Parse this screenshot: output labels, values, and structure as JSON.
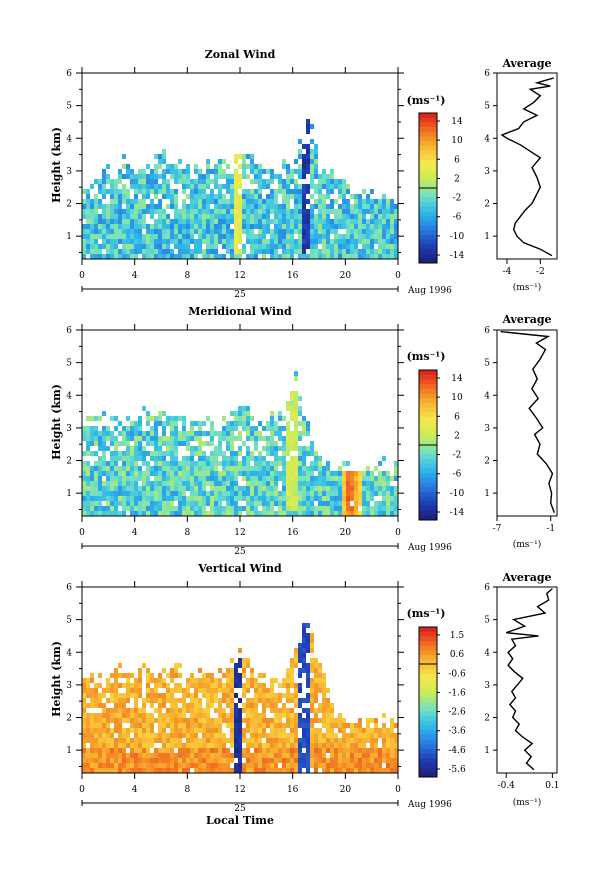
{
  "chart_data": [
    {
      "type": "heatmap",
      "title": "Zonal Wind",
      "ylabel": "Height (km)",
      "xlabel": "",
      "x_ticks": [
        "0",
        "4",
        "8",
        "12",
        "16",
        "20",
        "0"
      ],
      "x_range": [
        0,
        24
      ],
      "y_ticks": [
        "1",
        "2",
        "3",
        "4",
        "5",
        "6"
      ],
      "y_range": [
        0.3,
        6
      ],
      "date_label": "25",
      "date_suffix": "Aug 1996",
      "colorbar_unit": "(ms⁻¹)",
      "colorbar_labels": [
        "14",
        "10",
        "6",
        "2",
        "-2",
        "-6",
        "-10",
        "-14"
      ],
      "colorbar_range": [
        -16,
        16
      ],
      "data_extent": [
        {
          "t": 0,
          "top": 2.4
        },
        {
          "t": 1,
          "top": 3.0
        },
        {
          "t": 2,
          "top": 3.0
        },
        {
          "t": 3,
          "top": 3.3
        },
        {
          "t": 4,
          "top": 3.1
        },
        {
          "t": 5,
          "top": 3.1
        },
        {
          "t": 6,
          "top": 3.5
        },
        {
          "t": 7,
          "top": 3.2
        },
        {
          "t": 8,
          "top": 3.3
        },
        {
          "t": 9,
          "top": 3.2
        },
        {
          "t": 10,
          "top": 3.4
        },
        {
          "t": 11,
          "top": 3.4
        },
        {
          "t": 12,
          "top": 3.8
        },
        {
          "t": 13,
          "top": 3.2
        },
        {
          "t": 14,
          "top": 3.1
        },
        {
          "t": 15,
          "top": 3.2
        },
        {
          "t": 16,
          "top": 3.3
        },
        {
          "t": 17,
          "top": 4.8
        },
        {
          "t": 18,
          "top": 3.3
        },
        {
          "t": 19,
          "top": 3.1
        },
        {
          "t": 20,
          "top": 2.7
        },
        {
          "t": 21,
          "top": 2.5
        },
        {
          "t": 22,
          "top": 2.4
        },
        {
          "t": 23,
          "top": 2.2
        },
        {
          "t": 24,
          "top": 2.0
        }
      ],
      "features": [
        {
          "name": "strong easterly jet",
          "t": 16.8,
          "h_bottom": 0.5,
          "h_top": 4.8,
          "value": -13
        },
        {
          "name": "westerly spike",
          "t": 11.8,
          "h_bottom": 0.5,
          "h_top": 3.9,
          "value": 4
        }
      ],
      "profile": {
        "title": "Average",
        "x_ticks": [
          "-4",
          "-2"
        ],
        "x_range": [
          -4.6,
          -1.0
        ],
        "xlabel": "(ms⁻¹)",
        "y_ticks": [
          "1",
          "2",
          "3",
          "4",
          "5",
          "6"
        ],
        "points": [
          {
            "h": 0.4,
            "v": -1.3
          },
          {
            "h": 0.6,
            "v": -2.0
          },
          {
            "h": 0.8,
            "v": -3.0
          },
          {
            "h": 1.0,
            "v": -3.4
          },
          {
            "h": 1.2,
            "v": -3.6
          },
          {
            "h": 1.4,
            "v": -3.5
          },
          {
            "h": 1.6,
            "v": -3.2
          },
          {
            "h": 1.8,
            "v": -2.9
          },
          {
            "h": 2.0,
            "v": -2.5
          },
          {
            "h": 2.2,
            "v": -2.3
          },
          {
            "h": 2.5,
            "v": -2.0
          },
          {
            "h": 2.8,
            "v": -2.2
          },
          {
            "h": 3.1,
            "v": -2.5
          },
          {
            "h": 3.4,
            "v": -2.0
          },
          {
            "h": 3.6,
            "v": -2.6
          },
          {
            "h": 3.8,
            "v": -3.2
          },
          {
            "h": 4.0,
            "v": -4.0
          },
          {
            "h": 4.1,
            "v": -4.3
          },
          {
            "h": 4.3,
            "v": -3.3
          },
          {
            "h": 4.5,
            "v": -3.0
          },
          {
            "h": 4.7,
            "v": -2.2
          },
          {
            "h": 4.9,
            "v": -3.0
          },
          {
            "h": 5.1,
            "v": -2.4
          },
          {
            "h": 5.3,
            "v": -2.0
          },
          {
            "h": 5.5,
            "v": -2.6
          },
          {
            "h": 5.6,
            "v": -1.4
          },
          {
            "h": 5.7,
            "v": -2.2
          },
          {
            "h": 5.85,
            "v": -1.2
          }
        ]
      }
    },
    {
      "type": "heatmap",
      "title": "Meridional Wind",
      "ylabel": "Height (km)",
      "xlabel": "",
      "x_ticks": [
        "0",
        "4",
        "8",
        "12",
        "16",
        "20",
        "0"
      ],
      "x_range": [
        0,
        24
      ],
      "y_ticks": [
        "1",
        "2",
        "3",
        "4",
        "5",
        "6"
      ],
      "y_range": [
        0.3,
        6
      ],
      "date_label": "25",
      "date_suffix": "Aug 1996",
      "colorbar_unit": "(ms⁻¹)",
      "colorbar_labels": [
        "14",
        "10",
        "6",
        "2",
        "-2",
        "-6",
        "-10",
        "-14"
      ],
      "colorbar_range": [
        -16,
        16
      ],
      "data_extent": [
        {
          "t": 0,
          "top": 3.3
        },
        {
          "t": 1,
          "top": 3.4
        },
        {
          "t": 2,
          "top": 3.3
        },
        {
          "t": 3,
          "top": 3.4
        },
        {
          "t": 4,
          "top": 3.5
        },
        {
          "t": 5,
          "top": 3.6
        },
        {
          "t": 6,
          "top": 3.4
        },
        {
          "t": 7,
          "top": 3.5
        },
        {
          "t": 8,
          "top": 3.3
        },
        {
          "t": 9,
          "top": 3.4
        },
        {
          "t": 10,
          "top": 3.2
        },
        {
          "t": 11,
          "top": 3.3
        },
        {
          "t": 12,
          "top": 3.9
        },
        {
          "t": 13,
          "top": 3.1
        },
        {
          "t": 14,
          "top": 3.3
        },
        {
          "t": 15,
          "top": 3.4
        },
        {
          "t": 16,
          "top": 4.7
        },
        {
          "t": 17,
          "top": 3.2
        },
        {
          "t": 18,
          "top": 2.0
        },
        {
          "t": 19,
          "top": 1.8
        },
        {
          "t": 20,
          "top": 1.9
        },
        {
          "t": 21,
          "top": 1.7
        },
        {
          "t": 22,
          "top": 2.0
        },
        {
          "t": 23,
          "top": 1.9
        },
        {
          "t": 24,
          "top": 1.8
        }
      ],
      "features": [
        {
          "name": "southerly maximum",
          "t": 20.3,
          "h_bottom": 0.5,
          "h_top": 1.9,
          "value": 12
        },
        {
          "name": "positive band",
          "t": 15.8,
          "h_bottom": 0.5,
          "h_top": 4.6,
          "value": 2
        }
      ],
      "profile": {
        "title": "Average",
        "x_ticks": [
          "-7",
          "-1"
        ],
        "x_range": [
          -7,
          -0.3
        ],
        "xlabel": "(ms⁻¹)",
        "y_ticks": [
          "1",
          "2",
          "3",
          "4",
          "5",
          "6"
        ],
        "points": [
          {
            "h": 0.4,
            "v": -0.6
          },
          {
            "h": 0.7,
            "v": -1.0
          },
          {
            "h": 1.0,
            "v": -0.9
          },
          {
            "h": 1.3,
            "v": -1.2
          },
          {
            "h": 1.6,
            "v": -0.8
          },
          {
            "h": 1.9,
            "v": -1.5
          },
          {
            "h": 2.2,
            "v": -2.5
          },
          {
            "h": 2.5,
            "v": -2.2
          },
          {
            "h": 2.8,
            "v": -2.8
          },
          {
            "h": 3.0,
            "v": -1.9
          },
          {
            "h": 3.3,
            "v": -2.6
          },
          {
            "h": 3.6,
            "v": -3.4
          },
          {
            "h": 3.9,
            "v": -2.4
          },
          {
            "h": 4.2,
            "v": -3.1
          },
          {
            "h": 4.5,
            "v": -2.5
          },
          {
            "h": 4.8,
            "v": -3.0
          },
          {
            "h": 5.1,
            "v": -2.2
          },
          {
            "h": 5.4,
            "v": -1.6
          },
          {
            "h": 5.6,
            "v": -2.6
          },
          {
            "h": 5.8,
            "v": -1.3
          },
          {
            "h": 5.95,
            "v": -6.6
          }
        ]
      }
    },
    {
      "type": "heatmap",
      "title": "Vertical Wind",
      "ylabel": "Height (km)",
      "xlabel": "Local Time",
      "x_ticks": [
        "0",
        "4",
        "8",
        "12",
        "16",
        "20",
        "0"
      ],
      "x_range": [
        0,
        24
      ],
      "y_ticks": [
        "1",
        "2",
        "3",
        "4",
        "5",
        "6"
      ],
      "y_range": [
        0.3,
        6
      ],
      "date_label": "25",
      "date_suffix": "Aug 1996",
      "colorbar_unit": "(ms⁻¹)",
      "colorbar_labels": [
        "1.5",
        "0.6",
        "-0.6",
        "-1.6",
        "-2.6",
        "-3.6",
        "-4.6",
        "-5.6"
      ],
      "colorbar_range": [
        -6.1,
        2.0
      ],
      "data_extent": [
        {
          "t": 0,
          "top": 3.2
        },
        {
          "t": 1,
          "top": 3.4
        },
        {
          "t": 2,
          "top": 3.3
        },
        {
          "t": 3,
          "top": 3.6
        },
        {
          "t": 4,
          "top": 3.4
        },
        {
          "t": 5,
          "top": 3.5
        },
        {
          "t": 6,
          "top": 3.5
        },
        {
          "t": 7,
          "top": 3.6
        },
        {
          "t": 8,
          "top": 3.4
        },
        {
          "t": 9,
          "top": 3.5
        },
        {
          "t": 10,
          "top": 3.4
        },
        {
          "t": 11,
          "top": 3.5
        },
        {
          "t": 12,
          "top": 4.0
        },
        {
          "t": 13,
          "top": 3.3
        },
        {
          "t": 14,
          "top": 3.2
        },
        {
          "t": 15,
          "top": 3.3
        },
        {
          "t": 16,
          "top": 4.2
        },
        {
          "t": 17,
          "top": 5.0
        },
        {
          "t": 18,
          "top": 3.6
        },
        {
          "t": 19,
          "top": 2.2
        },
        {
          "t": 20,
          "top": 2.0
        },
        {
          "t": 21,
          "top": 2.1
        },
        {
          "t": 22,
          "top": 1.9
        },
        {
          "t": 23,
          "top": 2.0
        },
        {
          "t": 24,
          "top": 1.9
        }
      ],
      "features": [
        {
          "name": "downdraft band A",
          "t": 11.8,
          "h_bottom": 0.4,
          "h_top": 3.9,
          "value": -5.6
        },
        {
          "name": "downdraft band B",
          "t": 16.7,
          "h_bottom": 0.4,
          "h_top": 5.0,
          "value": -5.0
        }
      ],
      "profile": {
        "title": "Average",
        "x_ticks": [
          "-0.4",
          "0.1"
        ],
        "x_range": [
          -0.5,
          0.15
        ],
        "xlabel": "(ms⁻¹)",
        "y_ticks": [
          "1",
          "2",
          "3",
          "4",
          "5",
          "6"
        ],
        "points": [
          {
            "h": 0.4,
            "v": -0.1
          },
          {
            "h": 0.6,
            "v": -0.18
          },
          {
            "h": 0.8,
            "v": -0.13
          },
          {
            "h": 1.0,
            "v": -0.2
          },
          {
            "h": 1.2,
            "v": -0.12
          },
          {
            "h": 1.4,
            "v": -0.22
          },
          {
            "h": 1.6,
            "v": -0.3
          },
          {
            "h": 1.8,
            "v": -0.26
          },
          {
            "h": 2.0,
            "v": -0.33
          },
          {
            "h": 2.2,
            "v": -0.3
          },
          {
            "h": 2.4,
            "v": -0.36
          },
          {
            "h": 2.6,
            "v": -0.3
          },
          {
            "h": 2.8,
            "v": -0.34
          },
          {
            "h": 3.0,
            "v": -0.28
          },
          {
            "h": 3.2,
            "v": -0.22
          },
          {
            "h": 3.4,
            "v": -0.31
          },
          {
            "h": 3.6,
            "v": -0.38
          },
          {
            "h": 3.8,
            "v": -0.33
          },
          {
            "h": 4.0,
            "v": -0.38
          },
          {
            "h": 4.2,
            "v": -0.3
          },
          {
            "h": 4.4,
            "v": -0.34
          },
          {
            "h": 4.5,
            "v": -0.05
          },
          {
            "h": 4.6,
            "v": -0.4
          },
          {
            "h": 4.8,
            "v": -0.2
          },
          {
            "h": 5.0,
            "v": -0.32
          },
          {
            "h": 5.2,
            "v": 0.02
          },
          {
            "h": 5.4,
            "v": -0.06
          },
          {
            "h": 5.6,
            "v": 0.06
          },
          {
            "h": 5.8,
            "v": 0.04
          },
          {
            "h": 5.95,
            "v": 0.1
          }
        ]
      }
    }
  ]
}
